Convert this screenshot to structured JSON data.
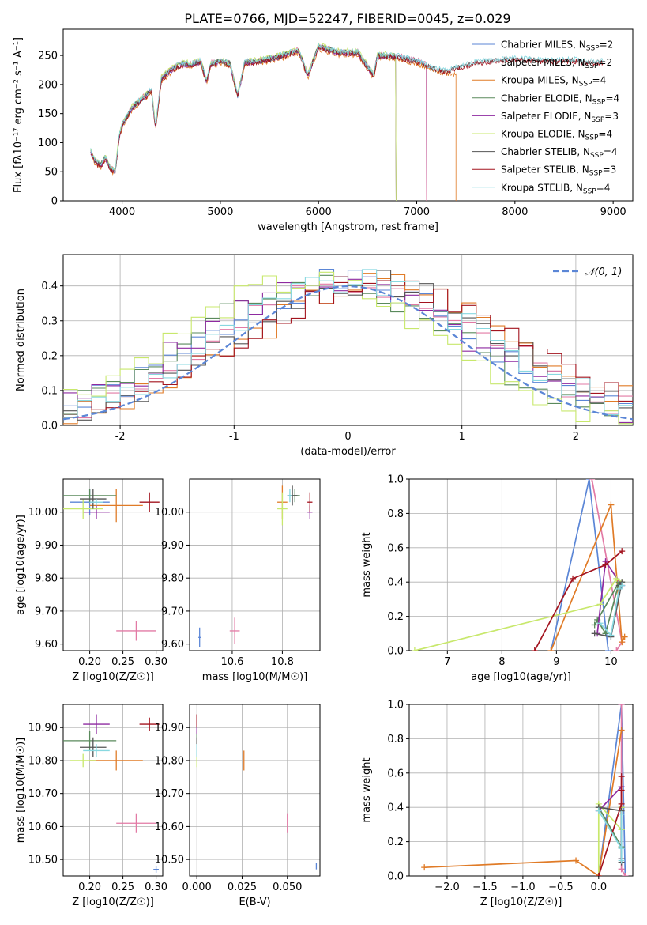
{
  "figure": {
    "title": "PLATE=0766, MJD=52247, FIBERID=0045, z=0.029"
  },
  "colors": {
    "chabrier_miles": "#5b86d6",
    "salpeter_miles": "#e27aa5",
    "kroupa_miles": "#e07b27",
    "chabrier_elodie": "#5a8a5c",
    "salpeter_elodie": "#8e2aa0",
    "kroupa_elodie": "#c8e86c",
    "chabrier_stelib": "#555555",
    "salpeter_stelib": "#a3141f",
    "kroupa_stelib": "#88d8e0",
    "normal_curve": "#5b86d6"
  },
  "chart_data": [
    {
      "type": "line",
      "id": "spectrum",
      "xlabel": "wavelength [Angstrom, rest frame]",
      "ylabel": "Flux [fλ10⁻¹⁷ erg cm⁻² s⁻¹ A⁻¹]",
      "xlim": [
        3400,
        9200
      ],
      "ylim": [
        0,
        295
      ],
      "xticks": [
        4000,
        5000,
        6000,
        7000,
        8000,
        9000
      ],
      "yticks": [
        0,
        50,
        100,
        150,
        200,
        250
      ],
      "legend_position": "top-right",
      "series": [
        {
          "name": "Chabrier MILES, N",
          "sub": "SSP",
          "suffix": "=2",
          "color_key": "chabrier_miles",
          "cutoff": 7100,
          "offset": 0
        },
        {
          "name": "Salpeter MILES, N",
          "sub": "SSP",
          "suffix": "=2",
          "color_key": "salpeter_miles",
          "cutoff": 7100,
          "offset": 2
        },
        {
          "name": "Kroupa MILES, N",
          "sub": "SSP",
          "suffix": "=4",
          "color_key": "kroupa_miles",
          "cutoff": 7400,
          "offset": -4
        },
        {
          "name": "Chabrier ELODIE, N",
          "sub": "SSP",
          "suffix": "=4",
          "color_key": "chabrier_elodie",
          "cutoff": 6790,
          "offset": 1
        },
        {
          "name": "Salpeter ELODIE, N",
          "sub": "SSP",
          "suffix": "=3",
          "color_key": "salpeter_elodie",
          "cutoff": 6790,
          "offset": -1
        },
        {
          "name": "Kroupa ELODIE, N",
          "sub": "SSP",
          "suffix": "=4",
          "color_key": "kroupa_elodie",
          "cutoff": 6790,
          "offset": 3
        },
        {
          "name": "Chabrier STELIB, N",
          "sub": "SSP",
          "suffix": "=4",
          "color_key": "chabrier_stelib",
          "cutoff": 8900,
          "offset": 0
        },
        {
          "name": "Salpeter STELIB, N",
          "sub": "SSP",
          "suffix": "=3",
          "color_key": "salpeter_stelib",
          "cutoff": 8900,
          "offset": -2
        },
        {
          "name": "Kroupa STELIB, N",
          "sub": "SSP",
          "suffix": "=4",
          "color_key": "kroupa_stelib",
          "cutoff": 8900,
          "offset": 2
        }
      ],
      "approx_shape": {
        "x": [
          3680,
          3720,
          3780,
          3830,
          3880,
          3930,
          3970,
          4000,
          4100,
          4200,
          4300,
          4340,
          4400,
          4500,
          4600,
          4700,
          4800,
          4861,
          4900,
          5000,
          5100,
          5175,
          5250,
          5400,
          5600,
          5800,
          5890,
          6000,
          6200,
          6400,
          6563,
          6600,
          6800,
          7000,
          7200,
          7400,
          7600,
          7800,
          8000,
          8200,
          8400,
          8600,
          8800,
          8900
        ],
        "y": [
          85,
          70,
          60,
          75,
          55,
          50,
          110,
          130,
          160,
          175,
          190,
          125,
          210,
          225,
          235,
          235,
          240,
          205,
          235,
          240,
          235,
          180,
          238,
          240,
          248,
          258,
          215,
          265,
          255,
          255,
          215,
          250,
          248,
          240,
          225,
          222,
          232,
          235,
          238,
          236,
          234,
          236,
          232,
          233
        ]
      }
    },
    {
      "type": "step",
      "id": "residuals",
      "xlabel": "(data-model)/error",
      "ylabel": "Normed distribution",
      "xlim": [
        -2.5,
        2.5
      ],
      "ylim": [
        0,
        0.49
      ],
      "xticks": [
        -2,
        -1,
        0,
        1,
        2
      ],
      "yticks": [
        0.0,
        0.1,
        0.2,
        0.3,
        0.4
      ],
      "legend": {
        "label": "𝒩(0, 1)",
        "position": "top-right"
      },
      "curve": {
        "type": "normal",
        "mean": 0,
        "sigma": 1,
        "color_key": "normal_curve"
      },
      "histograms": [
        {
          "color_key": "chabrier_miles",
          "shift": -0.05,
          "seed": 1
        },
        {
          "color_key": "salpeter_miles",
          "shift": 0.1,
          "seed": 2
        },
        {
          "color_key": "kroupa_miles",
          "shift": 0.3,
          "seed": 3
        },
        {
          "color_key": "chabrier_elodie",
          "shift": -0.2,
          "seed": 4
        },
        {
          "color_key": "salpeter_elodie",
          "shift": -0.15,
          "seed": 5
        },
        {
          "color_key": "kroupa_elodie",
          "shift": -0.35,
          "seed": 6
        },
        {
          "color_key": "chabrier_stelib",
          "shift": 0.15,
          "seed": 7
        },
        {
          "color_key": "salpeter_stelib",
          "shift": 0.25,
          "seed": 8
        },
        {
          "color_key": "kroupa_stelib",
          "shift": 0.05,
          "seed": 9
        }
      ]
    },
    {
      "type": "scatter",
      "id": "age_vs_Z",
      "xlabel": "Z [log10(Z/Z☉)]",
      "ylabel": "age  [log10(age/yr)]",
      "xlim": [
        0.16,
        0.31
      ],
      "ylim": [
        9.58,
        10.1
      ],
      "xticks": [
        0.2,
        0.25,
        0.3
      ],
      "yticks": [
        9.6,
        9.7,
        9.8,
        9.9,
        10.0
      ],
      "points": [
        {
          "x": 0.2,
          "y": 10.03,
          "xerr": 0.03,
          "yerr": 0.04,
          "color_key": "chabrier_miles"
        },
        {
          "x": 0.27,
          "y": 9.64,
          "xerr": 0.03,
          "yerr": 0.03,
          "color_key": "salpeter_miles"
        },
        {
          "x": 0.24,
          "y": 10.02,
          "xerr": 0.04,
          "yerr": 0.05,
          "color_key": "kroupa_miles"
        },
        {
          "x": 0.2,
          "y": 10.05,
          "xerr": 0.04,
          "yerr": 0.02,
          "color_key": "chabrier_elodie"
        },
        {
          "x": 0.21,
          "y": 10.0,
          "xerr": 0.02,
          "yerr": 0.02,
          "color_key": "salpeter_elodie"
        },
        {
          "x": 0.19,
          "y": 10.01,
          "xerr": 0.03,
          "yerr": 0.03,
          "color_key": "kroupa_elodie"
        },
        {
          "x": 0.205,
          "y": 10.04,
          "xerr": 0.02,
          "yerr": 0.03,
          "color_key": "chabrier_stelib"
        },
        {
          "x": 0.29,
          "y": 10.03,
          "xerr": 0.015,
          "yerr": 0.03,
          "color_key": "salpeter_stelib"
        },
        {
          "x": 0.21,
          "y": 10.03,
          "xerr": 0.01,
          "yerr": 0.01,
          "color_key": "kroupa_stelib"
        }
      ]
    },
    {
      "type": "scatter",
      "id": "age_vs_mass",
      "xlabel": "mass [log10(M/M☉)]",
      "ylabel": "",
      "xlim": [
        10.43,
        10.95
      ],
      "ylim": [
        9.58,
        10.1
      ],
      "xticks": [
        10.6,
        10.8
      ],
      "yticks": [
        9.6,
        9.7,
        9.8,
        9.9,
        10.0
      ],
      "points": [
        {
          "x": 10.47,
          "y": 9.62,
          "xerr": 0.005,
          "yerr": 0.03,
          "color_key": "chabrier_miles"
        },
        {
          "x": 10.61,
          "y": 9.64,
          "xerr": 0.02,
          "yerr": 0.04,
          "color_key": "salpeter_miles"
        },
        {
          "x": 10.8,
          "y": 10.03,
          "xerr": 0.02,
          "yerr": 0.05,
          "color_key": "kroupa_miles"
        },
        {
          "x": 10.85,
          "y": 10.05,
          "xerr": 0.02,
          "yerr": 0.02,
          "color_key": "chabrier_elodie"
        },
        {
          "x": 10.91,
          "y": 10.0,
          "xerr": 0.01,
          "yerr": 0.02,
          "color_key": "salpeter_elodie"
        },
        {
          "x": 10.8,
          "y": 10.01,
          "xerr": 0.02,
          "yerr": 0.05,
          "color_key": "kroupa_elodie"
        },
        {
          "x": 10.84,
          "y": 10.05,
          "xerr": 0.02,
          "yerr": 0.03,
          "color_key": "chabrier_stelib"
        },
        {
          "x": 10.91,
          "y": 10.03,
          "xerr": 0.01,
          "yerr": 0.03,
          "color_key": "salpeter_stelib"
        },
        {
          "x": 10.83,
          "y": 10.05,
          "xerr": 0.01,
          "yerr": 0.02,
          "color_key": "kroupa_stelib"
        }
      ]
    },
    {
      "type": "line",
      "id": "mass_weight_vs_age",
      "xlabel": "age  [log10(age/yr)]",
      "ylabel": "mass weight",
      "xlim": [
        6.3,
        10.4
      ],
      "ylim": [
        0,
        1
      ],
      "xticks": [
        7,
        8,
        9,
        10
      ],
      "yticks": [
        0.0,
        0.2,
        0.4,
        0.6,
        0.8,
        1.0
      ],
      "series": [
        {
          "color_key": "chabrier_miles",
          "x": [
            8.9,
            9.6,
            9.95
          ],
          "y": [
            0.0,
            1.0,
            0.0
          ]
        },
        {
          "color_key": "salpeter_miles",
          "x": [
            9.65,
            10.2,
            10.1
          ],
          "y": [
            1.0,
            0.05,
            0.0
          ]
        },
        {
          "color_key": "kroupa_miles",
          "x": [
            8.9,
            10.0,
            10.2,
            10.25
          ],
          "y": [
            0.0,
            0.85,
            0.05,
            0.08
          ]
        },
        {
          "color_key": "chabrier_elodie",
          "x": [
            9.7,
            10.15,
            9.9,
            9.75
          ],
          "y": [
            0.15,
            0.4,
            0.1,
            0.18
          ]
        },
        {
          "color_key": "salpeter_elodie",
          "x": [
            9.75,
            9.9,
            10.2
          ],
          "y": [
            0.1,
            0.52,
            0.38
          ]
        },
        {
          "color_key": "kroupa_elodie",
          "x": [
            6.4,
            9.8,
            10.1,
            10.2
          ],
          "y": [
            0.0,
            0.27,
            0.42,
            0.4
          ]
        },
        {
          "color_key": "chabrier_stelib",
          "x": [
            9.7,
            10.0,
            10.2,
            10.15
          ],
          "y": [
            0.1,
            0.08,
            0.4,
            0.38
          ]
        },
        {
          "color_key": "salpeter_stelib",
          "x": [
            8.6,
            9.3,
            9.9,
            10.2
          ],
          "y": [
            0.0,
            0.42,
            0.5,
            0.58
          ]
        },
        {
          "color_key": "kroupa_stelib",
          "x": [
            9.8,
            10.0,
            10.15,
            10.2
          ],
          "y": [
            0.16,
            0.09,
            0.36,
            0.38
          ]
        }
      ]
    },
    {
      "type": "scatter",
      "id": "mass_vs_Z",
      "xlabel": "Z [log10(Z/Z☉)]",
      "ylabel": "mass [log10(M/M☉)]",
      "xlim": [
        0.16,
        0.31
      ],
      "ylim": [
        10.45,
        10.97
      ],
      "xticks": [
        0.2,
        0.25,
        0.3
      ],
      "yticks": [
        10.5,
        10.6,
        10.7,
        10.8,
        10.9
      ],
      "points": [
        {
          "x": 0.3,
          "y": 10.47,
          "xerr": 0.004,
          "yerr": 0.01,
          "color_key": "chabrier_miles"
        },
        {
          "x": 0.27,
          "y": 10.61,
          "xerr": 0.03,
          "yerr": 0.03,
          "color_key": "salpeter_miles"
        },
        {
          "x": 0.24,
          "y": 10.8,
          "xerr": 0.04,
          "yerr": 0.03,
          "color_key": "kroupa_miles"
        },
        {
          "x": 0.2,
          "y": 10.86,
          "xerr": 0.04,
          "yerr": 0.03,
          "color_key": "chabrier_elodie"
        },
        {
          "x": 0.21,
          "y": 10.91,
          "xerr": 0.02,
          "yerr": 0.03,
          "color_key": "salpeter_elodie"
        },
        {
          "x": 0.19,
          "y": 10.8,
          "xerr": 0.02,
          "yerr": 0.02,
          "color_key": "kroupa_elodie"
        },
        {
          "x": 0.205,
          "y": 10.84,
          "xerr": 0.02,
          "yerr": 0.03,
          "color_key": "chabrier_stelib"
        },
        {
          "x": 0.29,
          "y": 10.91,
          "xerr": 0.015,
          "yerr": 0.02,
          "color_key": "salpeter_stelib"
        },
        {
          "x": 0.21,
          "y": 10.83,
          "xerr": 0.02,
          "yerr": 0.02,
          "color_key": "kroupa_stelib"
        }
      ]
    },
    {
      "type": "scatter",
      "id": "mass_vs_ebv",
      "xlabel": "E(B-V)",
      "ylabel": "",
      "xlim": [
        -0.004,
        0.068
      ],
      "ylim": [
        10.45,
        10.97
      ],
      "xticks": [
        0.0,
        0.025,
        0.05
      ],
      "xtick_labels": [
        "0.000",
        "0.025",
        "0.050"
      ],
      "yticks": [
        10.5,
        10.6,
        10.7,
        10.8,
        10.9
      ],
      "points": [
        {
          "x": 0.066,
          "y": 10.48,
          "xerr": 0,
          "yerr": 0.01,
          "color_key": "chabrier_miles"
        },
        {
          "x": 0.05,
          "y": 10.61,
          "xerr": 0,
          "yerr": 0.03,
          "color_key": "salpeter_miles"
        },
        {
          "x": 0.026,
          "y": 10.8,
          "xerr": 0,
          "yerr": 0.03,
          "color_key": "kroupa_miles"
        },
        {
          "x": 0.0,
          "y": 10.86,
          "xerr": 0,
          "yerr": 0.03,
          "color_key": "chabrier_elodie"
        },
        {
          "x": 0.0,
          "y": 10.91,
          "xerr": 0,
          "yerr": 0.03,
          "color_key": "salpeter_elodie"
        },
        {
          "x": 0.0,
          "y": 10.8,
          "xerr": 0,
          "yerr": 0.02,
          "color_key": "kroupa_elodie"
        },
        {
          "x": 0.0,
          "y": 10.84,
          "xerr": 0,
          "yerr": 0.03,
          "color_key": "chabrier_stelib"
        },
        {
          "x": 0.0,
          "y": 10.92,
          "xerr": 0,
          "yerr": 0.02,
          "color_key": "salpeter_stelib"
        },
        {
          "x": 0.0,
          "y": 10.83,
          "xerr": 0,
          "yerr": 0.02,
          "color_key": "kroupa_stelib"
        }
      ]
    },
    {
      "type": "line",
      "id": "mass_weight_vs_Z",
      "xlabel": "Z [log10(Z/Z☉)]",
      "ylabel": "mass weight",
      "xlim": [
        -2.5,
        0.45
      ],
      "ylim": [
        0,
        1
      ],
      "xticks": [
        -2.0,
        -1.5,
        -1.0,
        -0.5,
        0.0
      ],
      "xtick_labels": [
        "−2.0",
        "−1.5",
        "−1.0",
        "−0.5",
        "0.0"
      ],
      "yticks": [
        0.0,
        0.2,
        0.4,
        0.6,
        0.8,
        1.0
      ],
      "series": [
        {
          "color_key": "chabrier_miles",
          "x": [
            0.0,
            0.3,
            0.35
          ],
          "y": [
            0.0,
            1.0,
            0.0
          ]
        },
        {
          "color_key": "salpeter_miles",
          "x": [
            0.3,
            0.3,
            0.35
          ],
          "y": [
            1.0,
            0.04,
            0.0
          ]
        },
        {
          "color_key": "kroupa_miles",
          "x": [
            -2.3,
            -0.3,
            0.0,
            0.3
          ],
          "y": [
            0.05,
            0.09,
            0.0,
            0.85
          ]
        },
        {
          "color_key": "chabrier_elodie",
          "x": [
            0.0,
            0.3,
            0.3,
            0.3
          ],
          "y": [
            0.4,
            0.17,
            0.1,
            0.4
          ]
        },
        {
          "color_key": "salpeter_elodie",
          "x": [
            0.0,
            0.3,
            0.3
          ],
          "y": [
            0.38,
            0.52,
            0.1
          ]
        },
        {
          "color_key": "kroupa_elodie",
          "x": [
            0.0,
            0.0,
            0.3,
            0.3
          ],
          "y": [
            0.0,
            0.42,
            0.27,
            0.4
          ]
        },
        {
          "color_key": "chabrier_stelib",
          "x": [
            0.0,
            0.3,
            0.3,
            0.3
          ],
          "y": [
            0.4,
            0.38,
            0.08,
            0.1
          ]
        },
        {
          "color_key": "salpeter_stelib",
          "x": [
            0.0,
            0.3,
            0.3,
            0.3
          ],
          "y": [
            0.0,
            0.42,
            0.5,
            0.58
          ]
        },
        {
          "color_key": "kroupa_stelib",
          "x": [
            0.0,
            0.3,
            0.3,
            0.3
          ],
          "y": [
            0.38,
            0.16,
            0.36,
            0.09
          ]
        }
      ]
    }
  ]
}
